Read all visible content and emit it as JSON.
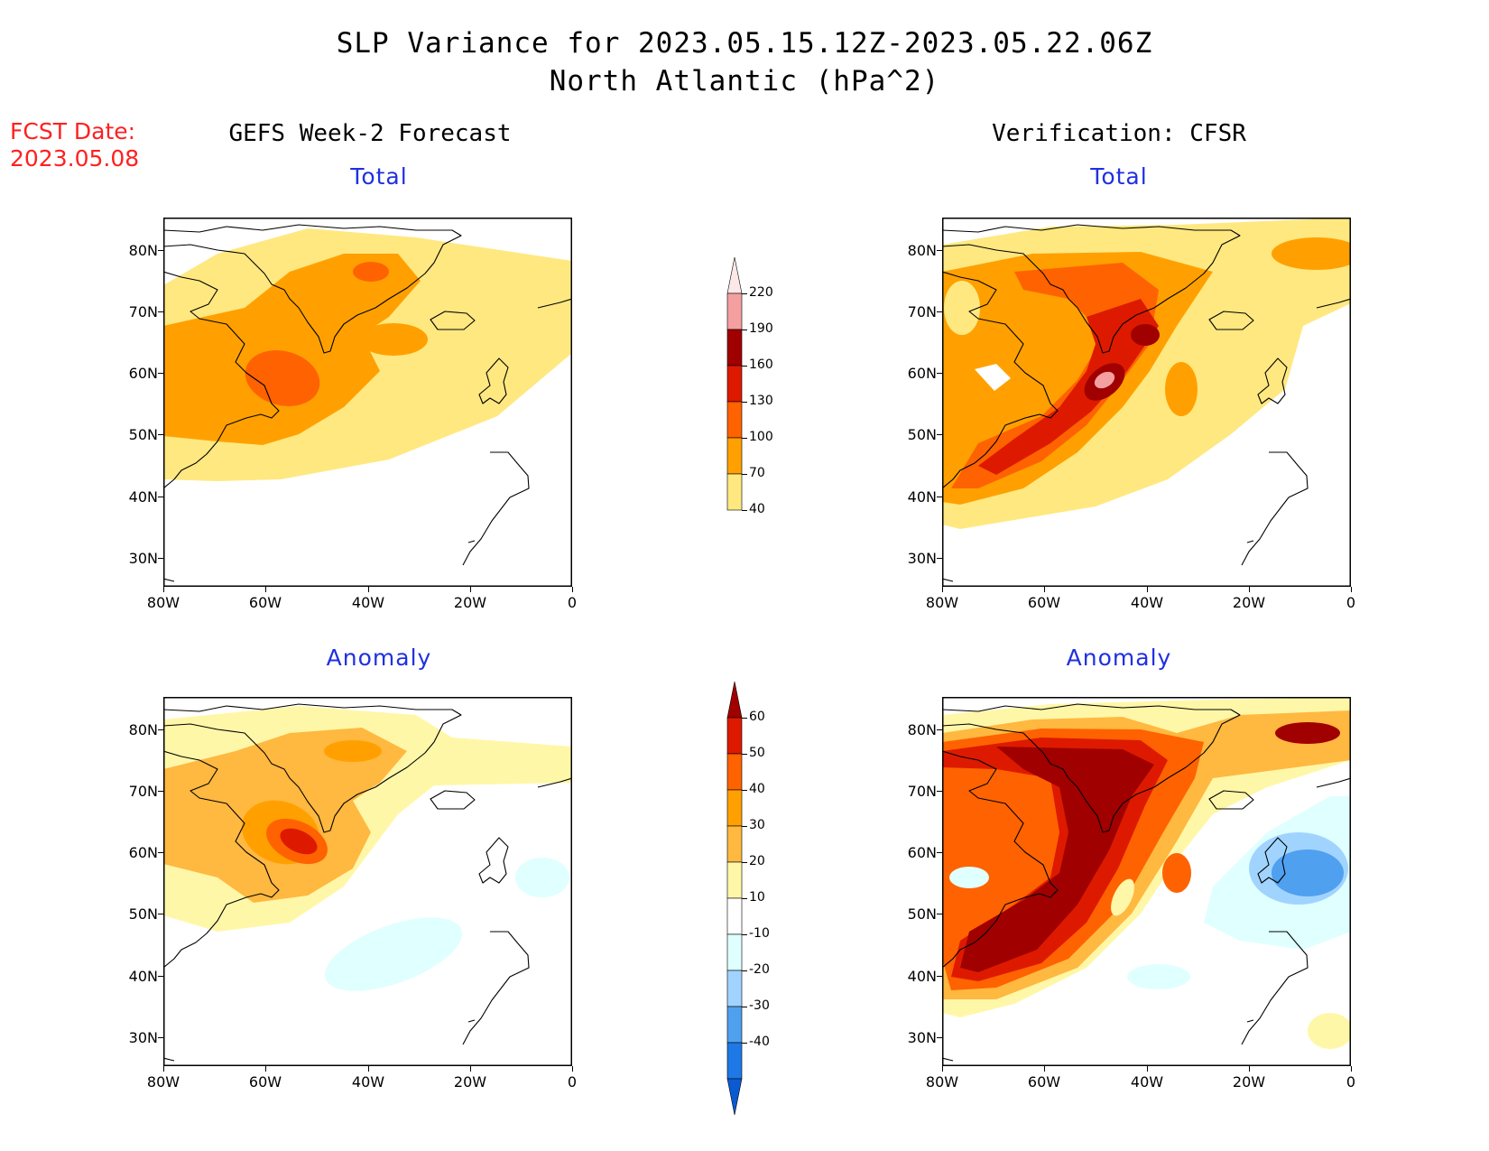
{
  "title_line1": "SLP Variance for 2023.05.15.12Z-2023.05.22.06Z",
  "title_line2": "North Atlantic (hPa^2)",
  "fcst_label": "FCST Date:",
  "fcst_date": "2023.05.08",
  "columns": {
    "left": "GEFS Week-2 Forecast",
    "right": "Verification: CFSR"
  },
  "subtitles": {
    "total": "Total",
    "anomaly": "Anomaly"
  },
  "map": {
    "lat_labels": [
      "80N",
      "70N",
      "60N",
      "50N",
      "40N",
      "30N"
    ],
    "lon_labels": [
      "80W",
      "60W",
      "40W",
      "20W",
      "0"
    ]
  },
  "colorbars": {
    "total": {
      "levels": [
        "220",
        "190",
        "160",
        "130",
        "100",
        "70",
        "40"
      ],
      "colors": [
        "#fde8e8",
        "#f4a0a0",
        "#a00000",
        "#dd1a00",
        "#ff6200",
        "#ffa000",
        "#ffe880"
      ]
    },
    "anomaly": {
      "levels": [
        "60",
        "50",
        "40",
        "30",
        "20",
        "10",
        "-10",
        "-20",
        "-30",
        "-40"
      ],
      "colors": [
        "#a00000",
        "#dd1a00",
        "#ff6200",
        "#ffa000",
        "#ffb840",
        "#fff7a8",
        "#ffffff",
        "#e0ffff",
        "#a0d4ff",
        "#50a0f0",
        "#1e78e6",
        "#0a5ad2"
      ]
    }
  },
  "colors": {
    "title": "#000000",
    "fcst": "#ff2020",
    "subtitle": "#2030e0"
  }
}
